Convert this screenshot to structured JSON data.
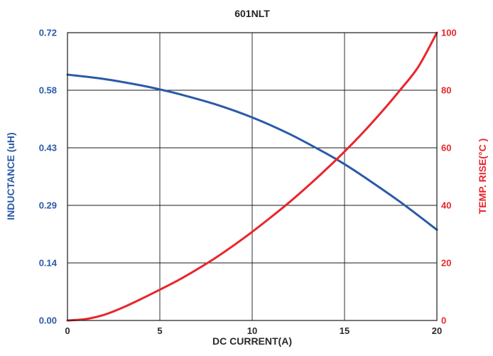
{
  "chart_data": {
    "type": "line",
    "title": "601NLT",
    "xlabel": "DC CURRENT(A)",
    "ylabel_left": "INDUCTANCE (uH)",
    "ylabel_right": "TEMP. RISE(°C )",
    "xlim": [
      0,
      20
    ],
    "ylim_left": [
      0,
      0.72
    ],
    "ylim_right": [
      0,
      100
    ],
    "x_ticks": [
      "0",
      "5",
      "10",
      "15",
      "20"
    ],
    "y_left_ticks": [
      "0.00",
      "0.14",
      "0.29",
      "0.43",
      "0.58",
      "0.72"
    ],
    "y_right_ticks": [
      "0",
      "20",
      "40",
      "60",
      "80",
      "100"
    ],
    "grid": true,
    "colors": {
      "left_axis": "#2a5aa8",
      "right_axis": "#e8262c",
      "x_axis": "#2a2a2a"
    },
    "series": [
      {
        "axis": "left",
        "color": "#2a5aa8",
        "x": [
          0,
          2,
          4,
          5,
          6,
          8,
          10,
          12,
          14,
          15,
          16,
          18,
          20
        ],
        "y": [
          0.615,
          0.604,
          0.588,
          0.578,
          0.567,
          0.541,
          0.508,
          0.467,
          0.418,
          0.391,
          0.361,
          0.297,
          0.227
        ]
      },
      {
        "axis": "right",
        "color": "#e8262c",
        "x": [
          0,
          1,
          2,
          3,
          4,
          5,
          6,
          7,
          8,
          9,
          10,
          11,
          12,
          13,
          14,
          15,
          16,
          17,
          18,
          19,
          20
        ],
        "y": [
          0,
          0.5,
          2,
          4.5,
          7.5,
          10.7,
          14,
          17.7,
          21.7,
          26.1,
          30.8,
          35.8,
          41,
          46.6,
          52.5,
          58.7,
          65.3,
          72.4,
          80,
          88.2,
          100
        ]
      }
    ]
  }
}
